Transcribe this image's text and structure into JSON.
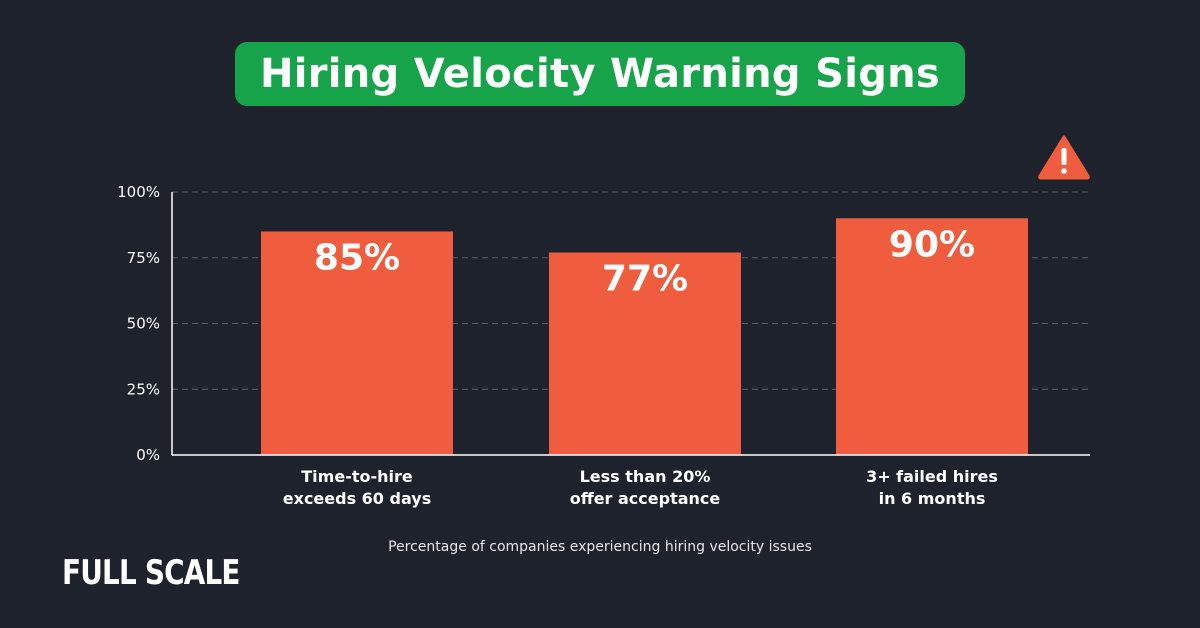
{
  "header": {
    "title": "Hiring Velocity Warning Signs"
  },
  "caption": "Percentage of companies experiencing hiring velocity issues",
  "brand": "FULL SCALE",
  "colors": {
    "background": "#1e222d",
    "title_pill": "#16a34a",
    "bar": "#f05d3e",
    "warning_icon": "#f05d3e"
  },
  "icons": {
    "warning": "warning-triangle-icon"
  },
  "chart_data": {
    "type": "bar",
    "categories": [
      [
        "Time-to-hire",
        "exceeds 60 days"
      ],
      [
        "Less than 20%",
        "offer acceptance"
      ],
      [
        "3+ failed hires",
        "in 6 months"
      ]
    ],
    "values": [
      85,
      77,
      90
    ],
    "value_labels": [
      "85%",
      "77%",
      "90%"
    ],
    "yticks": [
      0,
      25,
      50,
      75,
      100
    ],
    "ytick_labels": [
      "0%",
      "25%",
      "50%",
      "75%",
      "100%"
    ],
    "ylim": [
      0,
      100
    ],
    "grid": true,
    "title": "Hiring Velocity Warning Signs",
    "xlabel": "",
    "ylabel": ""
  }
}
